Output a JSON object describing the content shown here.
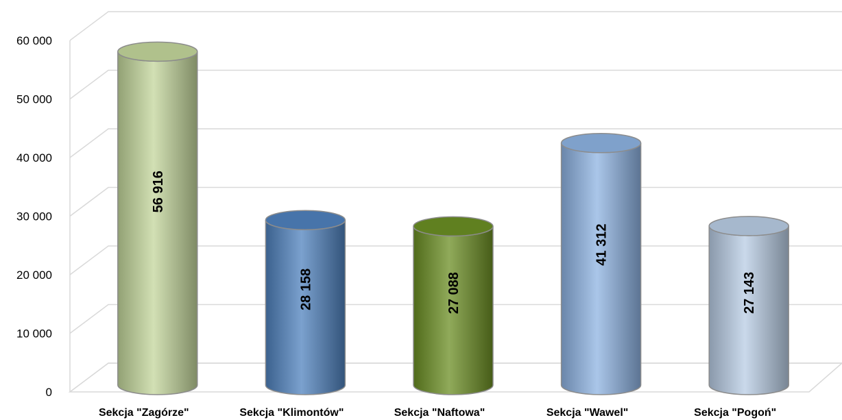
{
  "chart_data": {
    "type": "bar",
    "style": "3d-cylinder",
    "categories": [
      "Sekcja \"Zagórze\"",
      "Sekcja \"Klimontów\"",
      "Sekcja \"Naftowa\"",
      "Sekcja \"Wawel\"",
      "Sekcja \"Pogoń\""
    ],
    "values": [
      56916,
      28158,
      27088,
      41312,
      27143
    ],
    "value_labels": [
      "56 916",
      "28 158",
      "27 088",
      "41 312",
      "27 143"
    ],
    "colors": [
      "#c3d69b",
      "#4f81bd",
      "#6b8e23",
      "#8db3e2",
      "#b8cce4"
    ],
    "ylim": [
      0,
      60000
    ],
    "yticks": [
      0,
      10000,
      20000,
      30000,
      40000,
      50000,
      60000
    ],
    "ytick_labels": [
      "0",
      "10 000",
      "20 000",
      "30 000",
      "40 000",
      "50 000",
      "60 000"
    ],
    "title": "",
    "xlabel": "",
    "ylabel": "",
    "grid": true,
    "legend": "none"
  }
}
